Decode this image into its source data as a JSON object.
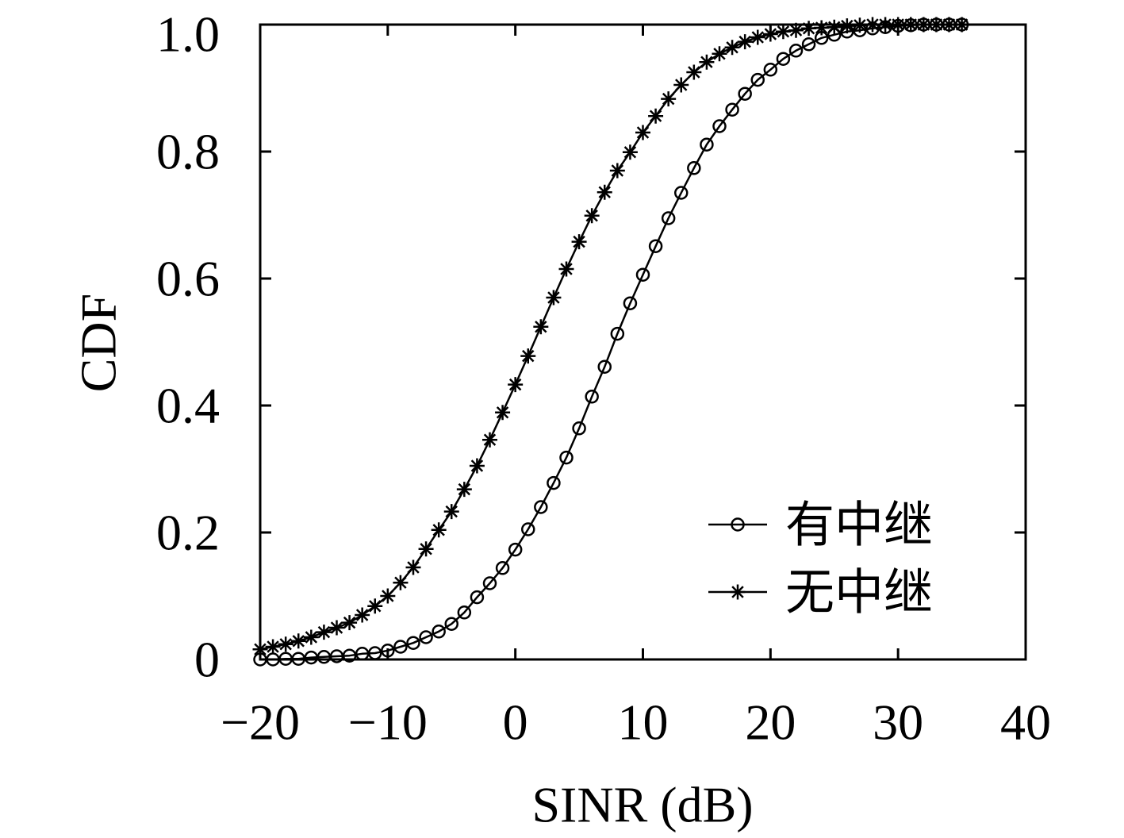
{
  "chart_data": {
    "type": "line",
    "xlabel": "SINR (dB)",
    "ylabel": "CDF",
    "xlim": [
      -20,
      40
    ],
    "ylim": [
      0,
      1
    ],
    "grid": false,
    "legend": {
      "position": "bottom-right"
    },
    "xticks": [
      {
        "value": -20,
        "label": "−20"
      },
      {
        "value": -10,
        "label": "−10"
      },
      {
        "value": 0,
        "label": "0"
      },
      {
        "value": 10,
        "label": "10"
      },
      {
        "value": 20,
        "label": "20"
      },
      {
        "value": 30,
        "label": "30"
      },
      {
        "value": 40,
        "label": "40"
      }
    ],
    "yticks": [
      {
        "value": 0,
        "label": "0"
      },
      {
        "value": 0.2,
        "label": "0.2"
      },
      {
        "value": 0.4,
        "label": "0.4"
      },
      {
        "value": 0.6,
        "label": "0.6"
      },
      {
        "value": 0.8,
        "label": "0.8"
      },
      {
        "value": 1.0,
        "label": "1.0"
      }
    ],
    "x": [
      -20,
      -19,
      -18,
      -17,
      -16,
      -15,
      -14,
      -13,
      -12,
      -11,
      -10,
      -9,
      -8,
      -7,
      -6,
      -5,
      -4,
      -3,
      -2,
      -1,
      0,
      1,
      2,
      3,
      4,
      5,
      6,
      7,
      8,
      9,
      10,
      11,
      12,
      13,
      14,
      15,
      16,
      17,
      18,
      19,
      20,
      21,
      22,
      23,
      24,
      25,
      26,
      27,
      28,
      29,
      30,
      31,
      32,
      33,
      34,
      35
    ],
    "series": [
      {
        "name": "有中继",
        "marker": "circle",
        "color": "#000000",
        "values": [
          0.0,
          0.0,
          0.001,
          0.001,
          0.003,
          0.004,
          0.005,
          0.006,
          0.009,
          0.01,
          0.014,
          0.02,
          0.026,
          0.035,
          0.044,
          0.056,
          0.074,
          0.098,
          0.12,
          0.144,
          0.173,
          0.205,
          0.24,
          0.278,
          0.318,
          0.364,
          0.414,
          0.461,
          0.513,
          0.561,
          0.606,
          0.651,
          0.695,
          0.735,
          0.774,
          0.811,
          0.84,
          0.866,
          0.891,
          0.913,
          0.929,
          0.946,
          0.959,
          0.969,
          0.979,
          0.984,
          0.989,
          0.991,
          0.994,
          0.996,
          0.998,
          0.999,
          1.0,
          1.0,
          1.0,
          1.0
        ]
      },
      {
        "name": "无中继",
        "marker": "star",
        "color": "#000000",
        "values": [
          0.016,
          0.02,
          0.024,
          0.029,
          0.035,
          0.043,
          0.05,
          0.058,
          0.07,
          0.084,
          0.1,
          0.121,
          0.145,
          0.174,
          0.204,
          0.233,
          0.268,
          0.305,
          0.346,
          0.389,
          0.433,
          0.478,
          0.524,
          0.57,
          0.615,
          0.658,
          0.699,
          0.736,
          0.77,
          0.799,
          0.83,
          0.856,
          0.883,
          0.905,
          0.925,
          0.941,
          0.954,
          0.964,
          0.973,
          0.98,
          0.985,
          0.989,
          0.991,
          0.994,
          0.995,
          0.996,
          0.998,
          0.999,
          1.0,
          1.0,
          1.0,
          1.0,
          1.0,
          1.0,
          1.0,
          1.0
        ]
      }
    ]
  }
}
